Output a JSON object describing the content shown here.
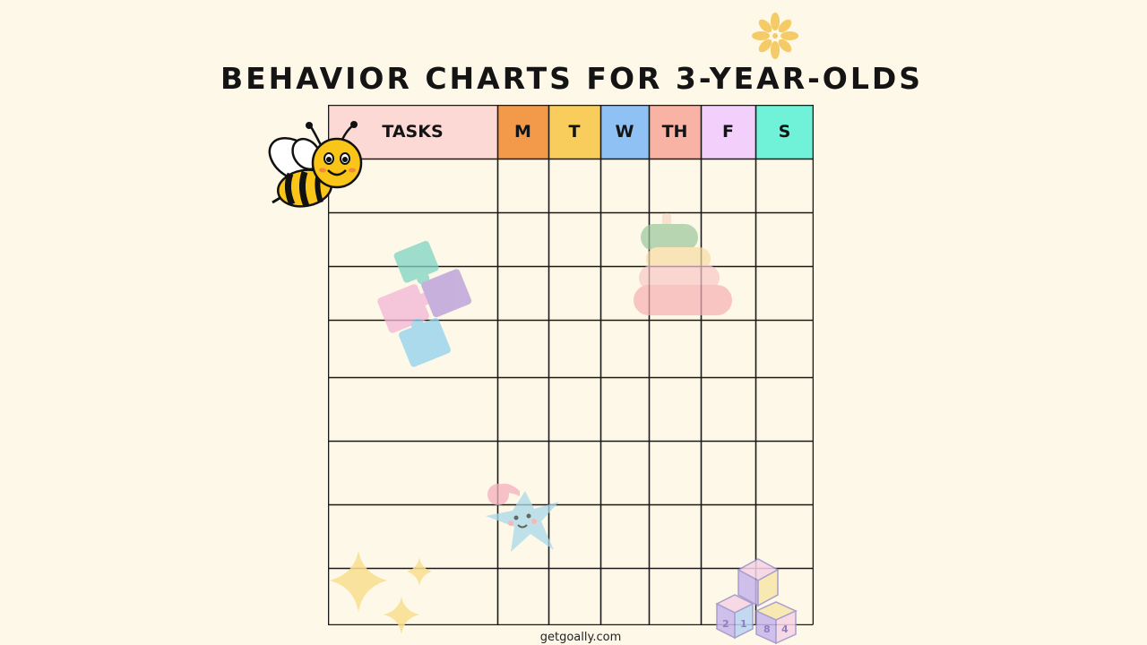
{
  "title": "BEHAVIOR CHARTS FOR 3-YEAR-OLDS",
  "footer": "getgoally.com",
  "chart": {
    "columns": [
      {
        "label": "TASKS",
        "color": "#fdd9d6"
      },
      {
        "label": "M",
        "color": "#f2994a"
      },
      {
        "label": "T",
        "color": "#f8cd5c"
      },
      {
        "label": "W",
        "color": "#8fc1f5"
      },
      {
        "label": "TH",
        "color": "#f9b3a5"
      },
      {
        "label": "F",
        "color": "#f3d0fb"
      },
      {
        "label": "S",
        "color": "#70f2d8"
      }
    ],
    "rows": 8
  },
  "decorations": [
    "bee-icon",
    "flower-icon",
    "puzzle-icon",
    "stacking-rings-icon",
    "star-toy-icon",
    "sparkles-icon",
    "toy-blocks-icon"
  ]
}
